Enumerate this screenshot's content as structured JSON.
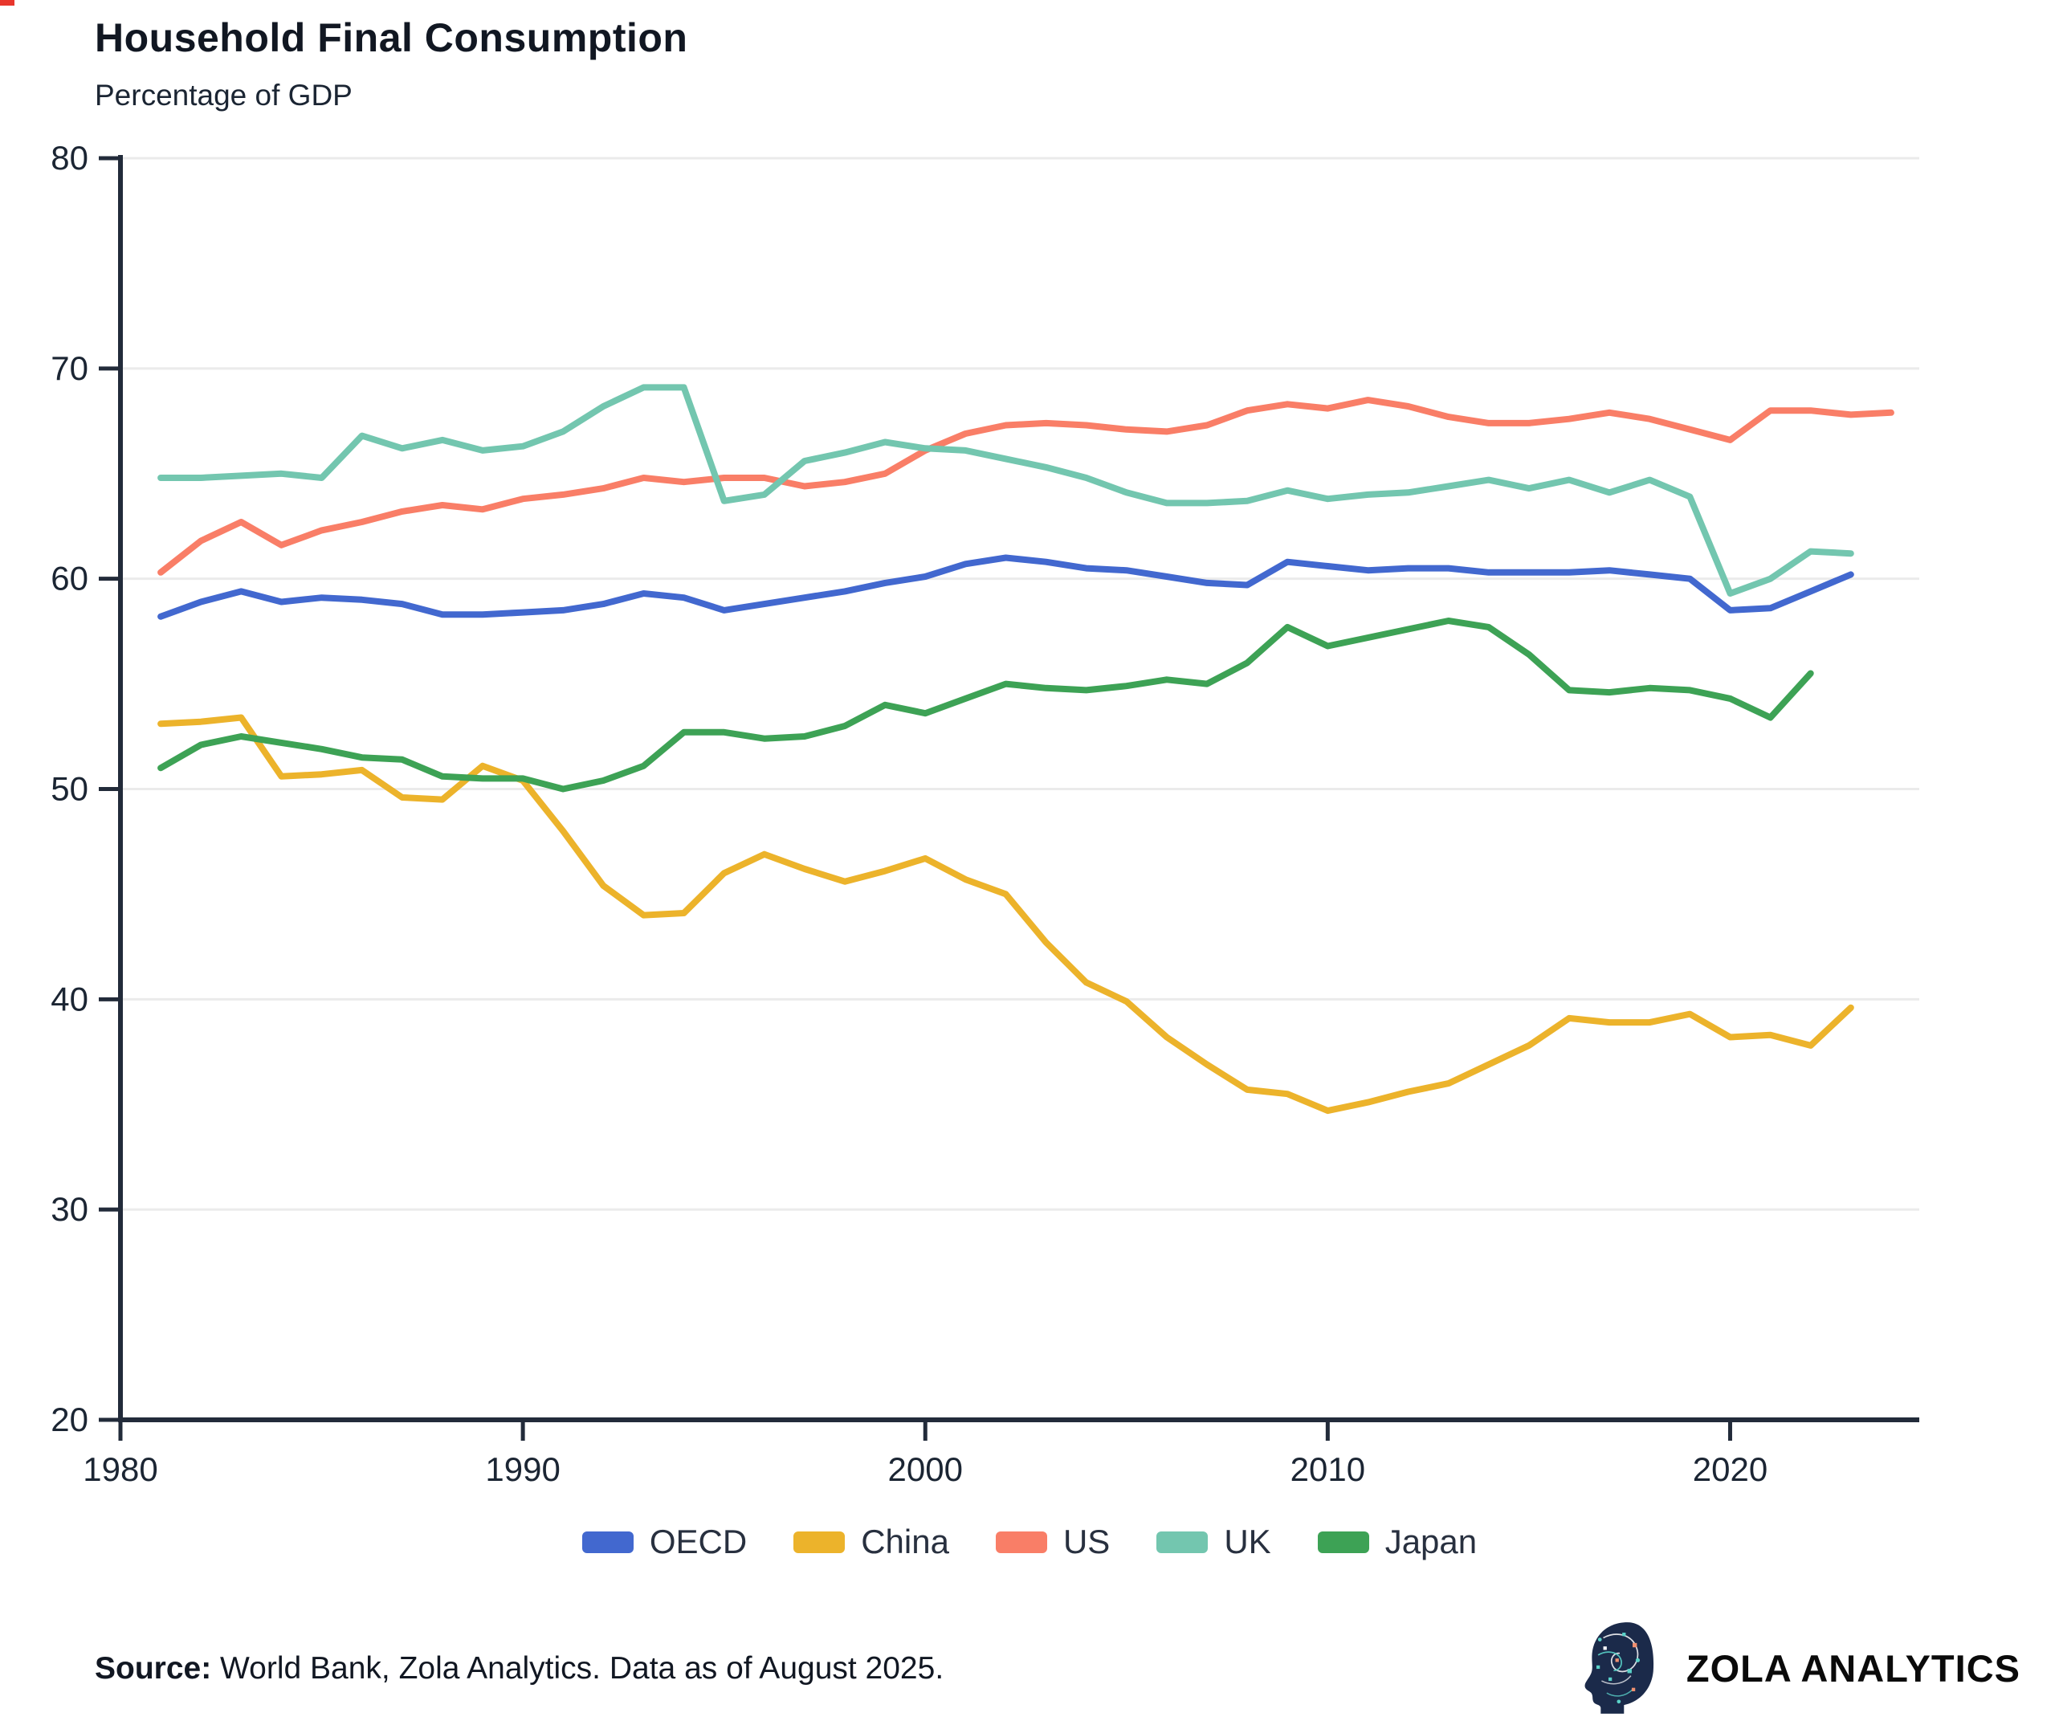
{
  "chart_data": {
    "type": "line",
    "title": "Household Final Consumption",
    "subtitle": "Percentage of GDP",
    "ylim": [
      20,
      80
    ],
    "xlim": [
      1980,
      2024.7
    ],
    "y_ticks": [
      20,
      30,
      40,
      50,
      60,
      70,
      80
    ],
    "x_ticks": [
      1980,
      1990,
      2000,
      2010,
      2020
    ],
    "grid": "horizontal",
    "legend_position": "bottom",
    "axis_color": "#222b3a",
    "grid_color": "#ebebeb",
    "tick_label_color": "#1b2533",
    "series": [
      {
        "name": "OECD",
        "color": "#4268cf",
        "start_year": 1981,
        "values": [
          58.2,
          58.9,
          59.4,
          58.9,
          59.1,
          59.0,
          58.8,
          58.3,
          58.3,
          58.4,
          58.5,
          58.8,
          59.3,
          59.1,
          58.5,
          58.8,
          59.1,
          59.4,
          59.8,
          60.1,
          60.7,
          61.0,
          60.8,
          60.5,
          60.4,
          60.1,
          59.8,
          59.7,
          60.8,
          60.6,
          60.4,
          60.5,
          60.5,
          60.3,
          60.3,
          60.3,
          60.4,
          60.2,
          60.0,
          58.5,
          58.6,
          59.4,
          60.2
        ]
      },
      {
        "name": "China",
        "color": "#ecb32b",
        "start_year": 1981,
        "values": [
          53.1,
          53.2,
          53.4,
          50.6,
          50.7,
          50.9,
          49.6,
          49.5,
          51.1,
          50.4,
          48.0,
          45.4,
          44.0,
          44.1,
          46.0,
          46.9,
          46.2,
          45.6,
          46.1,
          46.7,
          45.7,
          45.0,
          42.7,
          40.8,
          39.9,
          38.2,
          36.9,
          35.7,
          35.5,
          34.7,
          35.1,
          35.6,
          36.0,
          36.9,
          37.8,
          39.1,
          38.9,
          38.9,
          39.3,
          38.2,
          38.3,
          37.8,
          39.6
        ]
      },
      {
        "name": "US",
        "color": "#f97e67",
        "start_year": 1981,
        "values": [
          60.3,
          61.8,
          62.7,
          61.6,
          62.3,
          62.7,
          63.2,
          63.5,
          63.3,
          63.8,
          64.0,
          64.3,
          64.8,
          64.6,
          64.8,
          64.8,
          64.4,
          64.6,
          65.0,
          66.1,
          66.9,
          67.3,
          67.4,
          67.3,
          67.1,
          67.0,
          67.3,
          68.0,
          68.3,
          68.1,
          68.5,
          68.2,
          67.7,
          67.4,
          67.4,
          67.6,
          67.9,
          67.6,
          67.1,
          66.6,
          68.0,
          68.0,
          67.8,
          67.9
        ]
      },
      {
        "name": "UK",
        "color": "#73c6af",
        "start_year": 1981,
        "values": [
          64.8,
          64.8,
          64.9,
          65.0,
          64.8,
          66.8,
          66.2,
          66.6,
          66.1,
          66.3,
          67.0,
          68.2,
          69.1,
          69.1,
          63.7,
          64.0,
          65.6,
          66.0,
          66.5,
          66.2,
          66.1,
          65.7,
          65.3,
          64.8,
          64.1,
          63.6,
          63.6,
          63.7,
          64.2,
          63.8,
          64.0,
          64.1,
          64.4,
          64.7,
          64.3,
          64.7,
          64.1,
          64.7,
          63.9,
          59.3,
          60.0,
          61.3,
          61.2
        ]
      },
      {
        "name": "Japan",
        "color": "#3da255",
        "start_year": 1981,
        "values": [
          51.0,
          52.1,
          52.5,
          52.2,
          51.9,
          51.5,
          51.4,
          50.6,
          50.5,
          50.5,
          50.0,
          50.4,
          51.1,
          52.7,
          52.7,
          52.4,
          52.5,
          53.0,
          54.0,
          53.6,
          54.3,
          55.0,
          54.8,
          54.7,
          54.9,
          55.2,
          55.0,
          56.0,
          57.7,
          56.8,
          57.2,
          57.6,
          58.0,
          57.7,
          56.4,
          54.7,
          54.6,
          54.8,
          54.7,
          54.3,
          53.4,
          55.5
        ]
      }
    ]
  },
  "footer": {
    "source_label": "Source:",
    "source_text": " World Bank, Zola Analytics. Data as of August 2025.",
    "brand_name": "ZOLA ANALYTICS"
  }
}
